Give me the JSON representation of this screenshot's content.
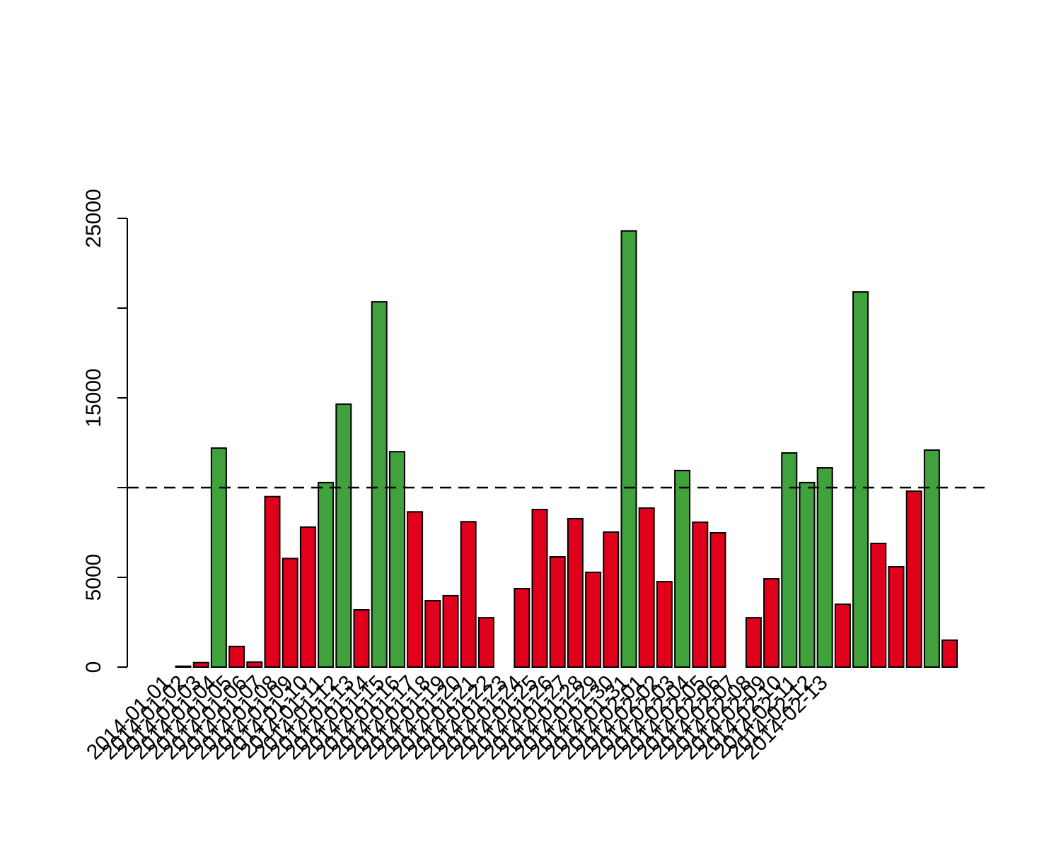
{
  "chart_data": {
    "type": "bar",
    "categories": [
      "2014-01-01",
      "2014-01-02",
      "2014-01-03",
      "2014-01-04",
      "2014-01-05",
      "2014-01-06",
      "2014-01-07",
      "2014-01-08",
      "2014-01-09",
      "2014-01-10",
      "2014-01-11",
      "2014-01-12",
      "2014-01-13",
      "2014-01-14",
      "2014-01-15",
      "2014-01-16",
      "2014-01-17",
      "2014-01-18",
      "2014-01-19",
      "2014-01-20",
      "2014-01-21",
      "2014-01-22",
      "2014-01-23",
      "2014-01-24",
      "2014-01-25",
      "2014-01-26",
      "2014-01-27",
      "2014-01-28",
      "2014-01-29",
      "2014-01-30",
      "2014-01-31",
      "2014-02-01",
      "2014-02-02",
      "2014-02-03",
      "2014-02-04",
      "2014-02-05",
      "2014-02-06",
      "2014-02-07",
      "2014-02-08",
      "2014-02-09",
      "2014-02-10",
      "2014-02-11",
      "2014-02-12",
      "2014-02-13"
    ],
    "values": [
      50,
      250,
      12200,
      1150,
      280,
      9500,
      6050,
      7800,
      10280,
      14650,
      3190,
      20350,
      12000,
      8650,
      3700,
      3980,
      8100,
      2750,
      0,
      4370,
      8780,
      6140,
      8270,
      5280,
      7520,
      24300,
      8860,
      4760,
      10950,
      8070,
      7480,
      0,
      2750,
      4920,
      11930,
      10280,
      11100,
      3500,
      20900,
      6890,
      5590,
      9800,
      12090,
      1500
    ],
    "colors": [
      "#e0001b",
      "#e0001b",
      "#41a13c",
      "#e0001b",
      "#e0001b",
      "#e0001b",
      "#e0001b",
      "#e0001b",
      "#41a13c",
      "#41a13c",
      "#e0001b",
      "#41a13c",
      "#41a13c",
      "#e0001b",
      "#e0001b",
      "#e0001b",
      "#e0001b",
      "#e0001b",
      "#e0001b",
      "#e0001b",
      "#e0001b",
      "#e0001b",
      "#e0001b",
      "#e0001b",
      "#e0001b",
      "#41a13c",
      "#e0001b",
      "#e0001b",
      "#41a13c",
      "#e0001b",
      "#e0001b",
      "#e0001b",
      "#e0001b",
      "#e0001b",
      "#41a13c",
      "#41a13c",
      "#41a13c",
      "#e0001b",
      "#41a13c",
      "#e0001b",
      "#e0001b",
      "#e0001b",
      "#41a13c",
      "#e0001b"
    ],
    "ylim": [
      0,
      25000
    ],
    "yticks": [
      0,
      5000,
      15000,
      25000
    ],
    "yticks_unlabeled": [
      10000,
      20000
    ],
    "hline": 10000
  }
}
